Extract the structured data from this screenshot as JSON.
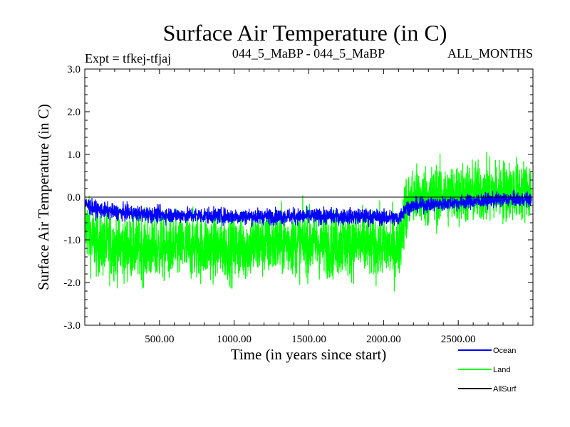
{
  "chart_data": {
    "type": "line",
    "title": "Surface Air Temperature (in C)",
    "subtitle_left": "Expt = tfkej-tfjaj",
    "subtitle_center": "044_5_MaBP - 044_5_MaBP",
    "subtitle_right": "ALL_MONTHS",
    "xlabel": "Time (in years since start)",
    "ylabel": "Surface Air Temperature (in C)",
    "xlim": [
      0,
      3000
    ],
    "ylim": [
      -3.0,
      3.0
    ],
    "x_ticks": [
      500,
      1000,
      1500,
      2000,
      2500
    ],
    "x_tick_labels": [
      "500.00",
      "1000.00",
      "1500.00",
      "2000.00",
      "2500.00"
    ],
    "y_ticks": [
      -3.0,
      -2.0,
      -1.0,
      0.0,
      1.0,
      2.0,
      3.0
    ],
    "y_tick_labels": [
      "-3.0",
      "-2.0",
      "-1.0",
      "0.0",
      "1.0",
      "2.0",
      "3.0"
    ],
    "zero_line": 0.0,
    "grid": false,
    "legend_position": "bottom-right",
    "series": [
      {
        "name": "Land",
        "color": "#00ff00",
        "x": [
          0,
          50,
          100,
          200,
          400,
          600,
          800,
          1000,
          1200,
          1400,
          1600,
          1800,
          2000,
          2100,
          2150,
          2200,
          2400,
          2600,
          2800,
          2990
        ],
        "values": [
          -0.6,
          -1.0,
          -1.1,
          -1.15,
          -1.2,
          -1.2,
          -1.15,
          -1.2,
          -1.1,
          -1.05,
          -1.1,
          -1.1,
          -1.15,
          -1.2,
          -0.2,
          0.0,
          0.05,
          0.1,
          0.15,
          0.15
        ],
        "spread_before": 0.9,
        "spread_after": 0.85
      },
      {
        "name": "Ocean",
        "color": "#0000ff",
        "x": [
          0,
          50,
          100,
          200,
          400,
          600,
          800,
          1000,
          1200,
          1400,
          1600,
          1800,
          2000,
          2100,
          2150,
          2200,
          2400,
          2600,
          2800,
          2990
        ],
        "values": [
          -0.15,
          -0.25,
          -0.3,
          -0.35,
          -0.4,
          -0.42,
          -0.43,
          -0.45,
          -0.45,
          -0.45,
          -0.45,
          -0.45,
          -0.47,
          -0.5,
          -0.25,
          -0.2,
          -0.15,
          -0.1,
          -0.05,
          -0.05
        ],
        "spread_before": 0.22,
        "spread_after": 0.2
      },
      {
        "name": "AllSurf",
        "color": "#000000",
        "x": [
          0,
          3000
        ],
        "values": [
          0.0,
          0.0
        ]
      }
    ]
  }
}
